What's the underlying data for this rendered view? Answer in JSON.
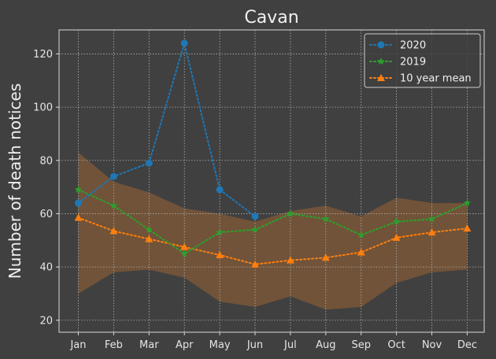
{
  "chart_data": {
    "type": "line",
    "title": "Cavan",
    "xlabel": "",
    "ylabel": "Number of death notices",
    "categories": [
      "Jan",
      "Feb",
      "Mar",
      "Apr",
      "May",
      "Jun",
      "Jul",
      "Aug",
      "Sep",
      "Oct",
      "Nov",
      "Dec"
    ],
    "yticks": [
      20,
      40,
      60,
      80,
      100,
      120
    ],
    "ylim": [
      15.5,
      129
    ],
    "grid": true,
    "legend_position": "top-right",
    "series": [
      {
        "name": "2020",
        "values": [
          64,
          74,
          79,
          124,
          69,
          59,
          null,
          null,
          null,
          null,
          null,
          null
        ],
        "color": "#1f77b4",
        "marker": "circle"
      },
      {
        "name": "2019",
        "values": [
          69,
          63,
          54,
          45,
          53,
          54,
          60,
          58,
          52,
          57,
          58,
          64
        ],
        "color": "#2ca02c",
        "marker": "star"
      },
      {
        "name": "10 year mean",
        "values": [
          58.5,
          53.5,
          50.5,
          47.5,
          44.5,
          41,
          42.5,
          43.5,
          45.5,
          51,
          53,
          54.5
        ],
        "color": "#ff7f0e",
        "marker": "triangle"
      }
    ],
    "range_band": {
      "upper": [
        83,
        72,
        68,
        62,
        60,
        57,
        61,
        63,
        59,
        66,
        64,
        64
      ],
      "lower": [
        30,
        38,
        39,
        36,
        27,
        25,
        29,
        24,
        25,
        34,
        38,
        39
      ],
      "color": "#7a5738"
    }
  }
}
